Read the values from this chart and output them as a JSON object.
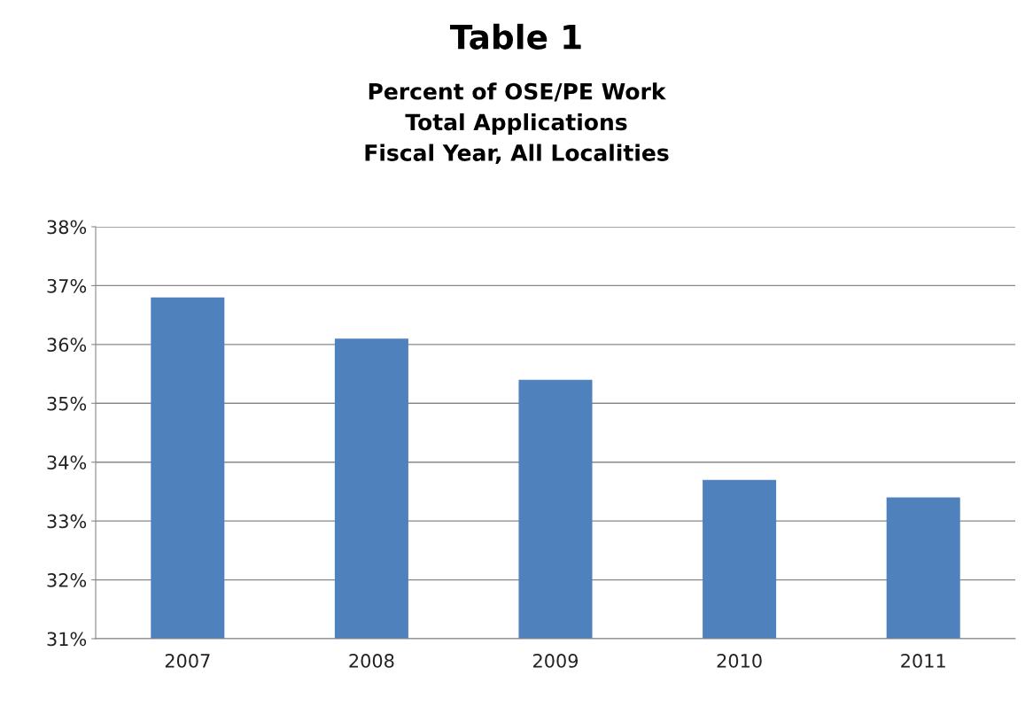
{
  "chart_data": {
    "type": "bar",
    "title": "Table 1",
    "subtitle": "Percent of OSE/PE Work\nTotal Applications\nFiscal Year, All Localities",
    "categories": [
      "2007",
      "2008",
      "2009",
      "2010",
      "2011"
    ],
    "values": [
      36.8,
      36.1,
      35.4,
      33.7,
      33.4
    ],
    "color": "#4f81bd",
    "ylim": [
      31,
      38
    ],
    "yticks": [
      {
        "value": 31,
        "label": "31%"
      },
      {
        "value": 32,
        "label": "32%"
      },
      {
        "value": 33,
        "label": "33%"
      },
      {
        "value": 34,
        "label": "34%"
      },
      {
        "value": 35,
        "label": "35%"
      },
      {
        "value": 36,
        "label": "36%"
      },
      {
        "value": 37,
        "label": "37%"
      },
      {
        "value": 38,
        "label": "38%"
      }
    ],
    "grid": "y"
  }
}
